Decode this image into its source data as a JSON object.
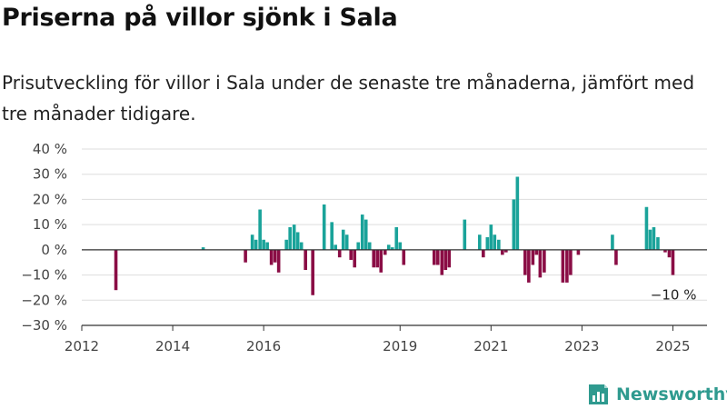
{
  "title": "Priserna på villor sjönk i Sala",
  "subtitle": "Prisutveckling för villor i Sala under de senaste tre månaderna, jämfört med tre månader tidigare.",
  "brand": {
    "name": "Newsworthy"
  },
  "colors": {
    "positive": "#1aa39a",
    "negative": "#8a0d45",
    "grid": "#dddddd",
    "axis": "#333333"
  },
  "chart_data": {
    "type": "bar",
    "xlabel": "",
    "ylabel": "",
    "xlim": [
      2012.0,
      2025.75
    ],
    "ylim": [
      -30,
      40
    ],
    "y_ticks": [
      40,
      30,
      20,
      10,
      0,
      -10,
      -20,
      -30
    ],
    "y_tick_labels": [
      "40 %",
      "30 %",
      "20 %",
      "10 %",
      "0 %",
      "−10 %",
      "−20 %",
      "−30 %"
    ],
    "x_ticks": [
      2012,
      2014,
      2016,
      2019,
      2021,
      2023,
      2025
    ],
    "x_tick_labels": [
      "2012",
      "2014",
      "2016",
      "2019",
      "2021",
      "2023",
      "2025"
    ],
    "grid": true,
    "annotation": {
      "text": "−10 %",
      "x": 2025.0,
      "y": -10
    },
    "series": [
      {
        "values": [
          {
            "x": 2012.75,
            "y": -16
          },
          {
            "x": 2014.67,
            "y": 1
          },
          {
            "x": 2015.6,
            "y": -5
          },
          {
            "x": 2015.75,
            "y": 6
          },
          {
            "x": 2015.83,
            "y": 4
          },
          {
            "x": 2015.92,
            "y": 16
          },
          {
            "x": 2016.0,
            "y": 4
          },
          {
            "x": 2016.08,
            "y": 3
          },
          {
            "x": 2016.17,
            "y": -6
          },
          {
            "x": 2016.25,
            "y": -5
          },
          {
            "x": 2016.33,
            "y": -9
          },
          {
            "x": 2016.5,
            "y": 4
          },
          {
            "x": 2016.58,
            "y": 9
          },
          {
            "x": 2016.67,
            "y": 10
          },
          {
            "x": 2016.75,
            "y": 7
          },
          {
            "x": 2016.83,
            "y": 3
          },
          {
            "x": 2016.92,
            "y": -8
          },
          {
            "x": 2017.08,
            "y": -18
          },
          {
            "x": 2017.33,
            "y": 18
          },
          {
            "x": 2017.5,
            "y": 11
          },
          {
            "x": 2017.58,
            "y": 2
          },
          {
            "x": 2017.67,
            "y": -3
          },
          {
            "x": 2017.75,
            "y": 8
          },
          {
            "x": 2017.83,
            "y": 6
          },
          {
            "x": 2017.92,
            "y": -4
          },
          {
            "x": 2018.0,
            "y": -7
          },
          {
            "x": 2018.08,
            "y": 3
          },
          {
            "x": 2018.17,
            "y": 14
          },
          {
            "x": 2018.25,
            "y": 12
          },
          {
            "x": 2018.33,
            "y": 3
          },
          {
            "x": 2018.42,
            "y": -7
          },
          {
            "x": 2018.5,
            "y": -7
          },
          {
            "x": 2018.58,
            "y": -9
          },
          {
            "x": 2018.67,
            "y": -2
          },
          {
            "x": 2018.75,
            "y": 2
          },
          {
            "x": 2018.83,
            "y": 1
          },
          {
            "x": 2018.92,
            "y": 9
          },
          {
            "x": 2019.0,
            "y": 3
          },
          {
            "x": 2019.08,
            "y": -6
          },
          {
            "x": 2019.75,
            "y": -6
          },
          {
            "x": 2019.83,
            "y": -6
          },
          {
            "x": 2019.92,
            "y": -10
          },
          {
            "x": 2020.0,
            "y": -8
          },
          {
            "x": 2020.08,
            "y": -7
          },
          {
            "x": 2020.42,
            "y": 12
          },
          {
            "x": 2020.75,
            "y": 6
          },
          {
            "x": 2020.83,
            "y": -3
          },
          {
            "x": 2020.92,
            "y": 5
          },
          {
            "x": 2021.0,
            "y": 10
          },
          {
            "x": 2021.08,
            "y": 6
          },
          {
            "x": 2021.17,
            "y": 4
          },
          {
            "x": 2021.25,
            "y": -2
          },
          {
            "x": 2021.33,
            "y": -1
          },
          {
            "x": 2021.5,
            "y": 20
          },
          {
            "x": 2021.58,
            "y": 29
          },
          {
            "x": 2021.75,
            "y": -10
          },
          {
            "x": 2021.83,
            "y": -13
          },
          {
            "x": 2021.92,
            "y": -6
          },
          {
            "x": 2022.0,
            "y": -2
          },
          {
            "x": 2022.08,
            "y": -11
          },
          {
            "x": 2022.17,
            "y": -9
          },
          {
            "x": 2022.58,
            "y": -13
          },
          {
            "x": 2022.67,
            "y": -13
          },
          {
            "x": 2022.75,
            "y": -10
          },
          {
            "x": 2022.92,
            "y": -2
          },
          {
            "x": 2023.67,
            "y": 6
          },
          {
            "x": 2023.75,
            "y": -6
          },
          {
            "x": 2024.42,
            "y": 17
          },
          {
            "x": 2024.5,
            "y": 8
          },
          {
            "x": 2024.58,
            "y": 9
          },
          {
            "x": 2024.67,
            "y": 5
          },
          {
            "x": 2024.83,
            "y": -1
          },
          {
            "x": 2024.92,
            "y": -3
          },
          {
            "x": 2025.0,
            "y": -10
          }
        ]
      }
    ]
  }
}
